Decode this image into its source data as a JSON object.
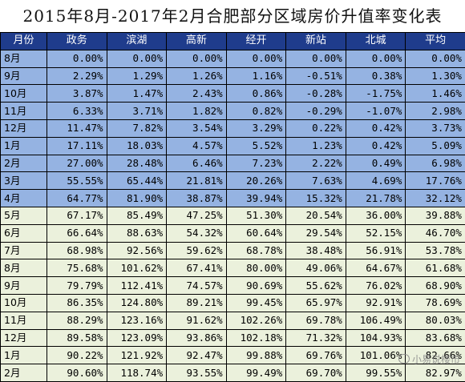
{
  "title": "2015年8月-2017年2月合肥部分区域房价升值率变化表",
  "header": [
    "月份",
    "政务",
    "滨湖",
    "高新",
    "经开",
    "新站",
    "北城",
    "平均"
  ],
  "rows": [
    {
      "style": "blue",
      "cells": [
        "8月",
        "0.00%",
        "0.00%",
        "0.00%",
        "0.00%",
        "0.00%",
        "0.00%",
        "0.00%"
      ]
    },
    {
      "style": "blue",
      "cells": [
        "9月",
        "2.29%",
        "1.29%",
        "1.26%",
        "1.16%",
        "-0.51%",
        "0.38%",
        "1.30%"
      ]
    },
    {
      "style": "blue",
      "cells": [
        "10月",
        "3.87%",
        "1.47%",
        "2.43%",
        "0.86%",
        "-0.28%",
        "-1.75%",
        "1.46%"
      ]
    },
    {
      "style": "blue",
      "cells": [
        "11月",
        "6.33%",
        "3.71%",
        "1.82%",
        "0.82%",
        "-0.29%",
        "-1.07%",
        "2.98%"
      ]
    },
    {
      "style": "blue",
      "cells": [
        "12月",
        "11.47%",
        "7.82%",
        "3.54%",
        "3.29%",
        "0.22%",
        "0.42%",
        "3.73%"
      ]
    },
    {
      "style": "blue",
      "cells": [
        "1月",
        "17.11%",
        "18.03%",
        "4.57%",
        "5.52%",
        "1.23%",
        "0.42%",
        "5.09%"
      ]
    },
    {
      "style": "blue",
      "cells": [
        "2月",
        "27.00%",
        "28.48%",
        "6.46%",
        "7.23%",
        "2.22%",
        "0.49%",
        "6.98%"
      ]
    },
    {
      "style": "blue",
      "cells": [
        "3月",
        "55.55%",
        "65.44%",
        "21.81%",
        "20.26%",
        "7.63%",
        "4.69%",
        "17.76%"
      ]
    },
    {
      "style": "blue",
      "cells": [
        "4月",
        "64.77%",
        "81.90%",
        "38.87%",
        "39.94%",
        "15.32%",
        "21.78%",
        "32.12%"
      ]
    },
    {
      "style": "cream",
      "cells": [
        "5月",
        "67.17%",
        "85.49%",
        "47.25%",
        "51.30%",
        "20.54%",
        "36.00%",
        "39.88%"
      ]
    },
    {
      "style": "cream",
      "cells": [
        "6月",
        "66.64%",
        "88.63%",
        "54.32%",
        "60.64%",
        "29.54%",
        "52.15%",
        "46.70%"
      ]
    },
    {
      "style": "cream",
      "cells": [
        "7月",
        "68.98%",
        "92.56%",
        "59.62%",
        "68.78%",
        "38.48%",
        "56.91%",
        "53.78%"
      ]
    },
    {
      "style": "cream",
      "cells": [
        "8月",
        "75.68%",
        "101.62%",
        "67.41%",
        "80.00%",
        "49.06%",
        "64.67%",
        "61.68%"
      ]
    },
    {
      "style": "cream",
      "cells": [
        "9月",
        "79.79%",
        "112.41%",
        "74.57%",
        "90.69%",
        "55.62%",
        "76.02%",
        "68.90%"
      ]
    },
    {
      "style": "cream",
      "cells": [
        "10月",
        "86.35%",
        "124.80%",
        "89.21%",
        "99.45%",
        "65.97%",
        "92.91%",
        "78.69%"
      ]
    },
    {
      "style": "cream",
      "cells": [
        "11月",
        "88.29%",
        "123.16%",
        "91.62%",
        "102.26%",
        "69.78%",
        "106.49%",
        "80.03%"
      ]
    },
    {
      "style": "cream",
      "cells": [
        "12月",
        "89.58%",
        "123.09%",
        "93.86%",
        "102.18%",
        "71.32%",
        "104.93%",
        "83.68%"
      ]
    },
    {
      "style": "cream",
      "cells": [
        "1月",
        "90.22%",
        "121.92%",
        "92.47%",
        "99.88%",
        "69.76%",
        "101.06%",
        "82.66%"
      ]
    },
    {
      "style": "cream",
      "cells": [
        "2月",
        "90.60%",
        "118.74%",
        "93.55%",
        "99.49%",
        "69.70%",
        "99.55%",
        "82.97%"
      ]
    }
  ],
  "watermark": "小易说楼市",
  "colors": {
    "header_bg": "#1f3c8c",
    "blue_rows": "#95b3e2",
    "cream_rows": "#ebf1dc"
  }
}
